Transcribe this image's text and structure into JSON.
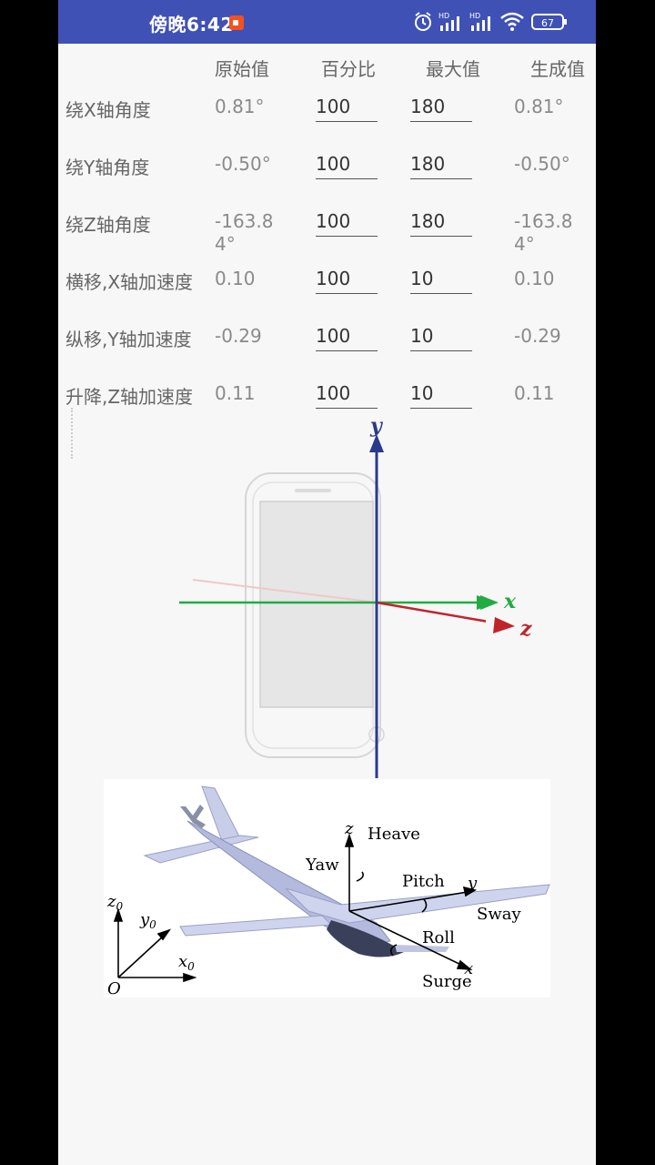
{
  "status_bar": {
    "time": "傍晚6:42",
    "battery": "67",
    "network_label_1": "HD",
    "network_label_2": "HD",
    "icons": [
      "video-record-icon",
      "alarm-icon",
      "signal-icon",
      "signal-icon",
      "wifi-icon",
      "battery-icon"
    ]
  },
  "table": {
    "headers": [
      "原始值",
      "百分比",
      "最大值",
      "生成值"
    ],
    "rows": [
      {
        "label": "绕X轴角度",
        "raw": "0.81°",
        "percent": "100",
        "max": "180",
        "generated": "0.81°"
      },
      {
        "label": "绕Y轴角度",
        "raw": "-0.50°",
        "percent": "100",
        "max": "180",
        "generated": "-0.50°"
      },
      {
        "label": "绕Z轴角度",
        "raw": "-163.84°",
        "percent": "100",
        "max": "180",
        "generated": "-163.84°"
      },
      {
        "label": "横移,X轴加速度",
        "raw": "0.10",
        "percent": "100",
        "max": "10",
        "generated": "0.10"
      },
      {
        "label": "纵移,Y轴加速度",
        "raw": "-0.29",
        "percent": "100",
        "max": "10",
        "generated": "-0.29"
      },
      {
        "label": "升降,Z轴加速度",
        "raw": "0.11",
        "percent": "100",
        "max": "10",
        "generated": "0.11"
      }
    ]
  },
  "phone_axes": {
    "y": "y",
    "x": "x",
    "z": "z"
  },
  "aircraft": {
    "heave": "Heave",
    "z": "z",
    "yaw": "Yaw",
    "pitch": "Pitch",
    "y": "y",
    "sway": "Sway",
    "roll": "Roll",
    "x": "x",
    "surge": "Surge",
    "z0": "z",
    "y0": "y",
    "x0": "x",
    "sub0": "0",
    "origin": "O"
  },
  "colors": {
    "statusbar": "#3f51b5",
    "x_axis": "#22aa44",
    "y_axis": "#2a3a8c",
    "z_axis": "#c0242a"
  }
}
